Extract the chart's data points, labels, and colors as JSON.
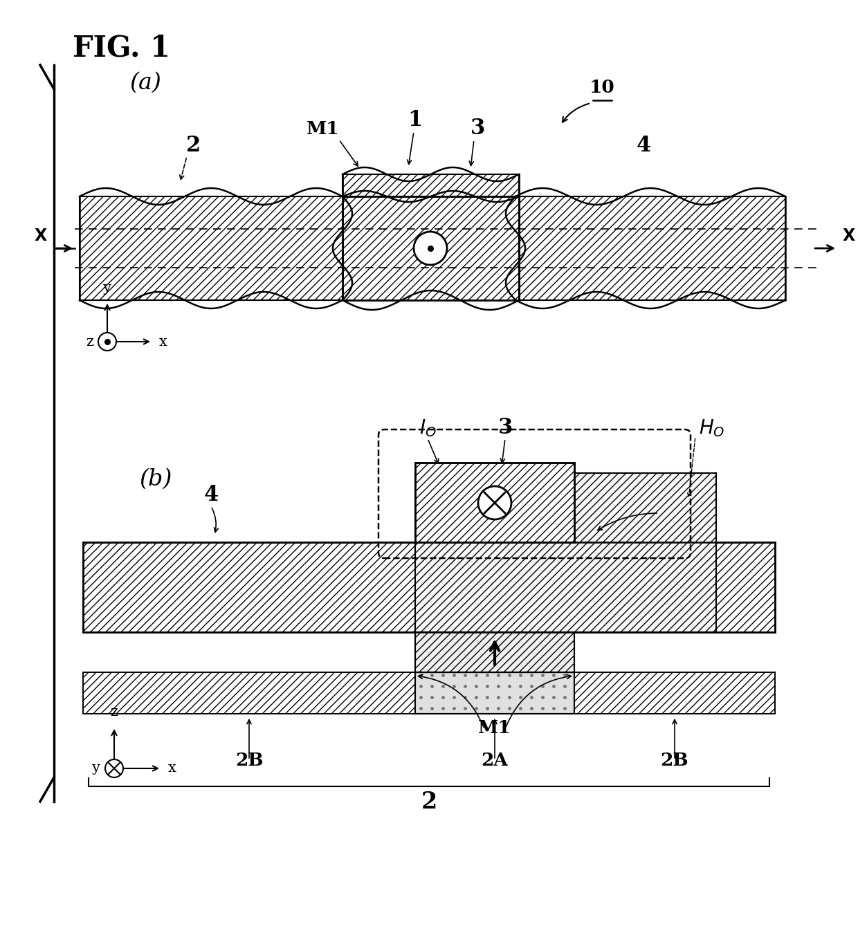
{
  "bg_color": "#ffffff",
  "fig_title": "FIG. 1",
  "panel_a": "(a)",
  "panel_b": "(b)"
}
